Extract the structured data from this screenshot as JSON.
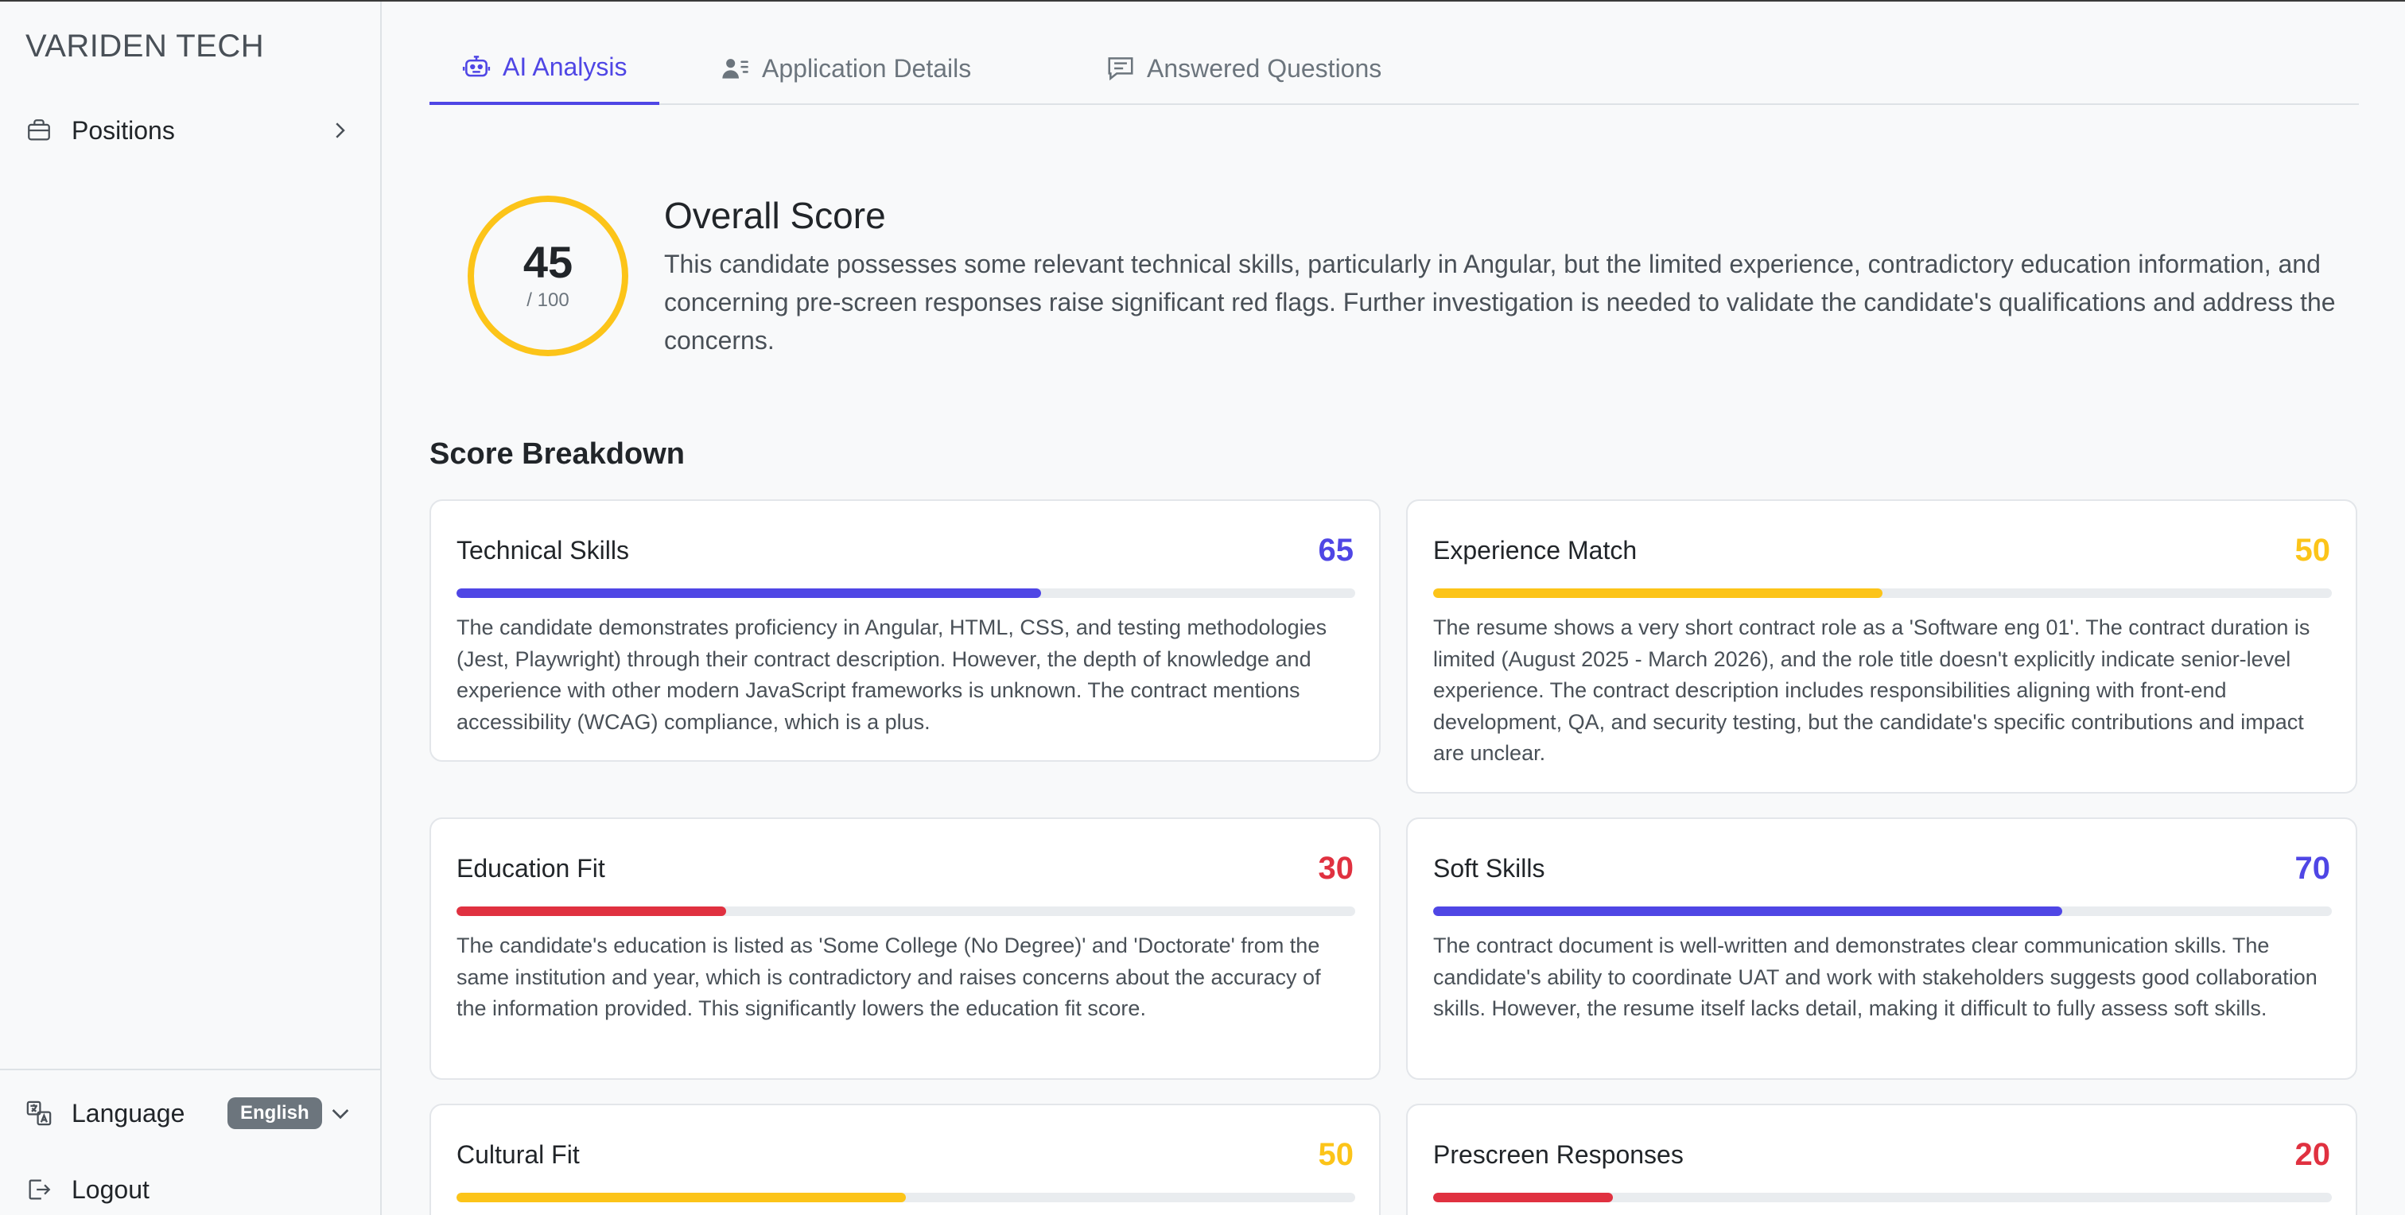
{
  "sidebar": {
    "brand": "VARIDEN TECH",
    "nav": {
      "positions_label": "Positions"
    },
    "language": {
      "label": "Language",
      "current": "English"
    },
    "logout_label": "Logout"
  },
  "tabs": {
    "ai_analysis": "AI Analysis",
    "application_details": "Application Details",
    "answered_questions": "Answered Questions",
    "active": "ai_analysis"
  },
  "overall": {
    "score": "45",
    "max": "/ 100",
    "title": "Overall Score",
    "summary": "This candidate possesses some relevant technical skills, particularly in Angular, but the limited experience, contradictory education information, and concerning pre-screen responses raise significant red flags. Further investigation is needed to validate the candidate's qualifications and address the concerns."
  },
  "breakdown": {
    "title": "Score Breakdown",
    "cards": [
      {
        "title": "Technical Skills",
        "score": "65",
        "level": 0.65,
        "color": "#4f46e5",
        "text": "The candidate demonstrates proficiency in Angular, HTML, CSS, and testing methodologies (Jest, Playwright) through their contract description. However, the depth of knowledge and experience with other modern JavaScript frameworks is unknown. The contract mentions accessibility (WCAG) compliance, which is a plus."
      },
      {
        "title": "Experience Match",
        "score": "50",
        "level": 0.5,
        "color": "#fcc419",
        "text": "The resume shows a very short contract role as a 'Software eng 01'. The contract duration is limited (August 2025 - March 2026), and the role title doesn't explicitly indicate senior-level experience. The contract description includes responsibilities aligning with front-end development, QA, and security testing, but the candidate's specific contributions and impact are unclear."
      },
      {
        "title": "Education Fit",
        "score": "30",
        "level": 0.3,
        "color": "#e03140",
        "text": "The candidate's education is listed as 'Some College (No Degree)' and 'Doctorate' from the same institution and year, which is contradictory and raises concerns about the accuracy of the information provided. This significantly lowers the education fit score."
      },
      {
        "title": "Soft Skills",
        "score": "70",
        "level": 0.7,
        "color": "#4f46e5",
        "text": "The contract document is well-written and demonstrates clear communication skills. The candidate's ability to coordinate UAT and work with stakeholders suggests good collaboration skills. However, the resume itself lacks detail, making it difficult to fully assess soft skills."
      },
      {
        "title": "Cultural Fit",
        "score": "50",
        "level": 0.5,
        "color": "#fcc419",
        "text": ""
      },
      {
        "title": "Prescreen Responses",
        "score": "20",
        "level": 0.2,
        "color": "#e03140",
        "text": ""
      }
    ]
  }
}
